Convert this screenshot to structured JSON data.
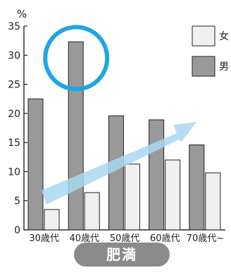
{
  "chart_data": {
    "type": "bar",
    "y_unit": "%",
    "categories": [
      "30歳代",
      "40歳代",
      "50歳代",
      "60歳代",
      "70歳代~"
    ],
    "series": [
      {
        "name": "男",
        "color": "#999999",
        "values": [
          22.5,
          32.3,
          19.6,
          18.9,
          14.6
        ]
      },
      {
        "name": "女",
        "color": "#f0f0f0",
        "values": [
          3.5,
          6.4,
          11.3,
          12.0,
          9.8
        ]
      }
    ],
    "ylim": [
      0,
      35
    ],
    "yticks": [
      0,
      5,
      10,
      15,
      20,
      25,
      30,
      35
    ],
    "legend_position": "top-right",
    "highlight_color": "#1ea5e6",
    "arrow_color": "#a8d8f0"
  },
  "badge_label": "肥満"
}
